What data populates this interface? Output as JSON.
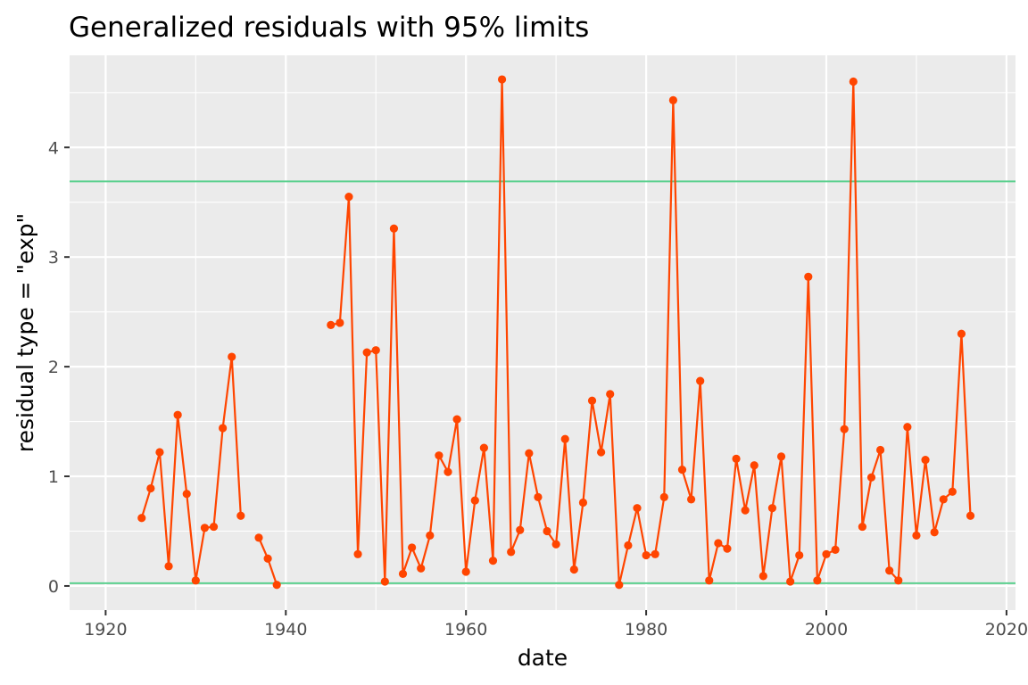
{
  "chart_data": {
    "type": "line",
    "title": "Generalized residuals with 95% limits",
    "xlabel": "date",
    "ylabel": "residual type = \"exp\"",
    "xlim": [
      1916,
      2021
    ],
    "ylim": [
      -0.22,
      4.84
    ],
    "x_ticks": [
      1920,
      1940,
      1960,
      1980,
      2000,
      2020
    ],
    "x_tick_labels": [
      "1920",
      "1940",
      "1960",
      "1980",
      "2000",
      "2020"
    ],
    "y_ticks": [
      0,
      1,
      2,
      3,
      4
    ],
    "y_tick_labels": [
      "0",
      "1",
      "2",
      "3",
      "4"
    ],
    "grid": true,
    "panel_background": "#ebebeb",
    "limit_lines": [
      {
        "y": 3.69,
        "color": "#5cd08f"
      },
      {
        "y": 0.025,
        "color": "#5cd08f"
      }
    ],
    "series": [
      {
        "color": "#ff4500",
        "segments": [
          [
            [
              1924,
              0.62
            ],
            [
              1925,
              0.89
            ],
            [
              1926,
              1.22
            ],
            [
              1927,
              0.18
            ],
            [
              1928,
              1.56
            ],
            [
              1929,
              0.84
            ],
            [
              1930,
              0.05
            ],
            [
              1931,
              0.53
            ],
            [
              1932,
              0.54
            ],
            [
              1933,
              1.44
            ],
            [
              1934,
              2.09
            ],
            [
              1935,
              0.64
            ]
          ],
          [
            [
              1937,
              0.44
            ],
            [
              1938,
              0.25
            ],
            [
              1939,
              0.01
            ]
          ],
          [
            [
              1945,
              2.38
            ],
            [
              1946,
              2.4
            ],
            [
              1947,
              3.55
            ],
            [
              1948,
              0.29
            ],
            [
              1949,
              2.13
            ],
            [
              1950,
              2.15
            ],
            [
              1951,
              0.04
            ],
            [
              1952,
              3.26
            ],
            [
              1953,
              0.11
            ],
            [
              1954,
              0.35
            ],
            [
              1955,
              0.16
            ],
            [
              1956,
              0.46
            ],
            [
              1957,
              1.19
            ],
            [
              1958,
              1.04
            ],
            [
              1959,
              1.52
            ],
            [
              1960,
              0.13
            ],
            [
              1961,
              0.78
            ],
            [
              1962,
              1.26
            ],
            [
              1963,
              0.23
            ],
            [
              1964,
              4.62
            ],
            [
              1965,
              0.31
            ],
            [
              1966,
              0.51
            ],
            [
              1967,
              1.21
            ],
            [
              1968,
              0.81
            ],
            [
              1969,
              0.5
            ],
            [
              1970,
              0.38
            ],
            [
              1971,
              1.34
            ],
            [
              1972,
              0.15
            ],
            [
              1973,
              0.76
            ],
            [
              1974,
              1.69
            ],
            [
              1975,
              1.22
            ],
            [
              1976,
              1.75
            ],
            [
              1977,
              0.01
            ],
            [
              1978,
              0.37
            ],
            [
              1979,
              0.71
            ],
            [
              1980,
              0.28
            ],
            [
              1981,
              0.29
            ],
            [
              1982,
              0.81
            ],
            [
              1983,
              4.43
            ],
            [
              1984,
              1.06
            ],
            [
              1985,
              0.79
            ],
            [
              1986,
              1.87
            ],
            [
              1987,
              0.05
            ],
            [
              1988,
              0.39
            ],
            [
              1989,
              0.34
            ],
            [
              1990,
              1.16
            ],
            [
              1991,
              0.69
            ],
            [
              1992,
              1.1
            ],
            [
              1993,
              0.09
            ],
            [
              1994,
              0.71
            ],
            [
              1995,
              1.18
            ],
            [
              1996,
              0.04
            ],
            [
              1997,
              0.28
            ],
            [
              1998,
              2.82
            ],
            [
              1999,
              0.05
            ],
            [
              2000,
              0.29
            ],
            [
              2001,
              0.33
            ],
            [
              2002,
              1.43
            ],
            [
              2003,
              4.6
            ],
            [
              2004,
              0.54
            ],
            [
              2005,
              0.99
            ],
            [
              2006,
              1.24
            ],
            [
              2007,
              0.14
            ],
            [
              2008,
              0.05
            ],
            [
              2009,
              1.45
            ],
            [
              2010,
              0.46
            ],
            [
              2011,
              1.15
            ],
            [
              2012,
              0.49
            ],
            [
              2013,
              0.79
            ],
            [
              2014,
              0.86
            ],
            [
              2015,
              2.3
            ],
            [
              2016,
              0.64
            ]
          ]
        ]
      }
    ]
  }
}
